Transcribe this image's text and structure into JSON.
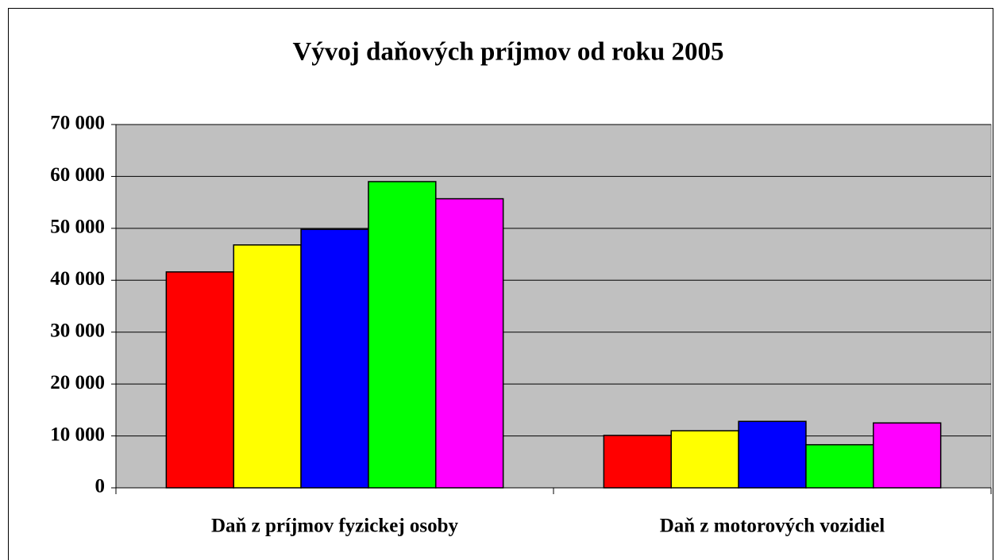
{
  "chart_data": {
    "type": "bar",
    "title": "Vývoj daňových príjmov od roku 2005",
    "categories": [
      "Daň z príjmov fyzickej osoby",
      "Daň z motorových vozidiel"
    ],
    "series": [
      {
        "color": "#ff0000",
        "values": [
          41600,
          10100
        ]
      },
      {
        "color": "#ffff00",
        "values": [
          46800,
          11000
        ]
      },
      {
        "color": "#0000ff",
        "values": [
          49800,
          12800
        ]
      },
      {
        "color": "#00ff00",
        "values": [
          59000,
          8300
        ]
      },
      {
        "color": "#ff00ff",
        "values": [
          55700,
          12500
        ]
      }
    ],
    "ylim": [
      0,
      70000
    ],
    "yticks": [
      {
        "value": 0,
        "label": "0"
      },
      {
        "value": 10000,
        "label": "10 000"
      },
      {
        "value": 20000,
        "label": "20 000"
      },
      {
        "value": 30000,
        "label": "30 000"
      },
      {
        "value": 40000,
        "label": "40 000"
      },
      {
        "value": 50000,
        "label": "50 000"
      },
      {
        "value": 60000,
        "label": "60 000"
      },
      {
        "value": 70000,
        "label": "70 000"
      }
    ],
    "grid": true
  }
}
